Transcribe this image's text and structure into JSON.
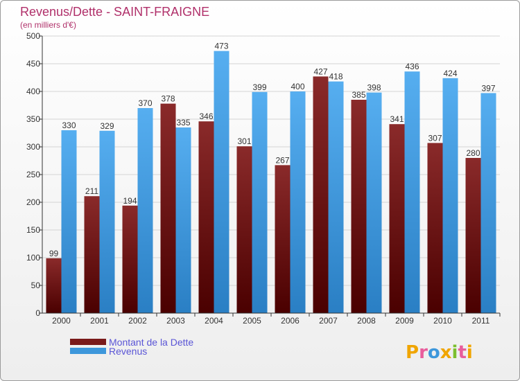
{
  "chart_data": {
    "type": "bar",
    "title": "Revenus/Dette - SAINT-FRAIGNE",
    "subtitle": "(en milliers d'€)",
    "categories": [
      "2000",
      "2001",
      "2002",
      "2003",
      "2004",
      "2005",
      "2006",
      "2007",
      "2008",
      "2009",
      "2010",
      "2011"
    ],
    "series": [
      {
        "name": "Montant de la Dette",
        "color": "#7a1a1a",
        "values": [
          99,
          211,
          194,
          378,
          346,
          301,
          267,
          427,
          385,
          341,
          307,
          280
        ]
      },
      {
        "name": "Revenus",
        "color": "#3d97db",
        "values": [
          330,
          329,
          370,
          335,
          473,
          399,
          400,
          418,
          398,
          436,
          424,
          397
        ]
      }
    ],
    "ylim": [
      0,
      500
    ],
    "yticks": [
      0,
      50,
      100,
      150,
      200,
      250,
      300,
      350,
      400,
      450,
      500
    ],
    "grid": true,
    "legend_position": "bottom-left"
  },
  "brand": {
    "logo_text": "Proxiti"
  }
}
